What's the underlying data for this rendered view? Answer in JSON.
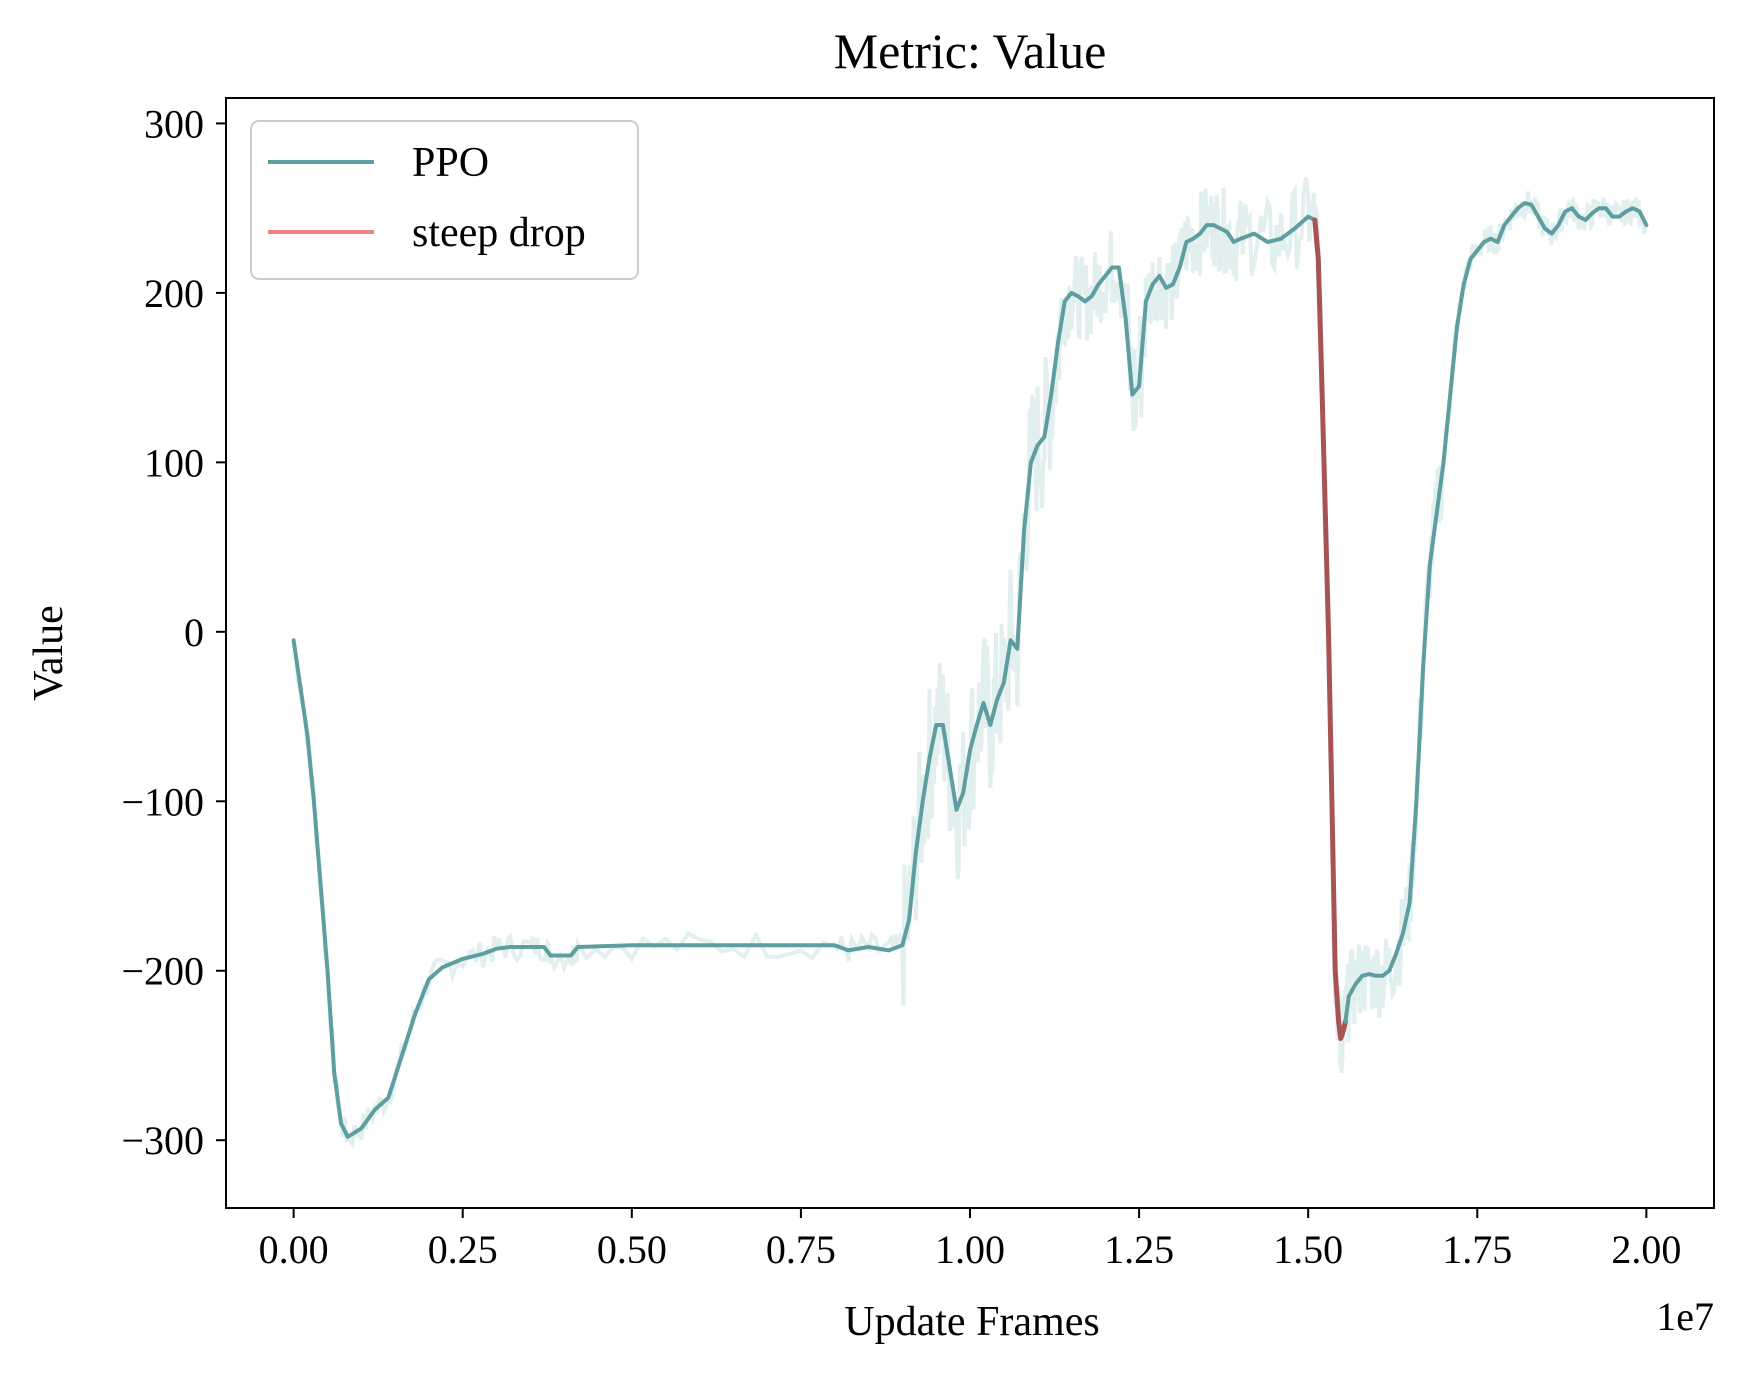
{
  "chart_data": {
    "type": "line",
    "title": "Metric: Value",
    "xlabel": "Update Frames",
    "ylabel": "Value",
    "x_offset_label": "1e7",
    "xlim": [
      -0.1,
      2.1
    ],
    "ylim": [
      -340,
      315
    ],
    "x_ticks": [
      0.0,
      0.25,
      0.5,
      0.75,
      1.0,
      1.25,
      1.5,
      1.75,
      2.0
    ],
    "x_tick_labels": [
      "0.00",
      "0.25",
      "0.50",
      "0.75",
      "1.00",
      "1.25",
      "1.50",
      "1.75",
      "2.00"
    ],
    "y_ticks": [
      -300,
      -200,
      -100,
      0,
      100,
      200,
      300
    ],
    "y_tick_labels": [
      "−300",
      "−200",
      "−100",
      "0",
      "100",
      "200",
      "300"
    ],
    "grid": false,
    "legend": {
      "placement": "upper-left",
      "entries": [
        {
          "label": "PPO",
          "color": "#5f9ea0"
        },
        {
          "label": "steep drop",
          "color": "#f08080"
        }
      ]
    },
    "colors": {
      "main": "#5f9ea0",
      "raw": "#e2efef",
      "drop": "#a85353",
      "drop_legend": "#f08080"
    },
    "series": [
      {
        "name": "PPO",
        "x": [
          0.0,
          0.02,
          0.03,
          0.05,
          0.06,
          0.07,
          0.08,
          0.1,
          0.12,
          0.14,
          0.16,
          0.18,
          0.2,
          0.22,
          0.25,
          0.28,
          0.3,
          0.32,
          0.35,
          0.37,
          0.38,
          0.41,
          0.42,
          0.5,
          0.6,
          0.7,
          0.8,
          0.82,
          0.85,
          0.88,
          0.9,
          0.91,
          0.92,
          0.93,
          0.94,
          0.95,
          0.96,
          0.97,
          0.98,
          0.99,
          1.0,
          1.01,
          1.02,
          1.03,
          1.04,
          1.05,
          1.06,
          1.07,
          1.08,
          1.09,
          1.1,
          1.11,
          1.12,
          1.13,
          1.14,
          1.15,
          1.16,
          1.17,
          1.18,
          1.19,
          1.2,
          1.21,
          1.22,
          1.23,
          1.24,
          1.25,
          1.26,
          1.27,
          1.28,
          1.29,
          1.3,
          1.31,
          1.32,
          1.33,
          1.34,
          1.35,
          1.36,
          1.37,
          1.38,
          1.39,
          1.4,
          1.42,
          1.44,
          1.46,
          1.48,
          1.5,
          1.51
        ],
        "y": [
          -5,
          -60,
          -100,
          -200,
          -260,
          -290,
          -298,
          -293,
          -282,
          -275,
          -250,
          -225,
          -205,
          -198,
          -193,
          -190,
          -187,
          -186,
          -186,
          -186,
          -191,
          -191,
          -186,
          -185,
          -185,
          -185,
          -185,
          -188,
          -186,
          -188,
          -185,
          -170,
          -130,
          -100,
          -75,
          -55,
          -55,
          -80,
          -105,
          -95,
          -70,
          -55,
          -42,
          -55,
          -40,
          -30,
          -5,
          -10,
          60,
          100,
          110,
          115,
          140,
          170,
          195,
          200,
          198,
          195,
          198,
          205,
          210,
          215,
          215,
          185,
          140,
          145,
          195,
          205,
          210,
          203,
          205,
          215,
          230,
          232,
          235,
          240,
          240,
          238,
          236,
          230,
          232,
          235,
          230,
          232,
          238,
          245,
          243
        ]
      },
      {
        "name": "steep drop",
        "x": [
          1.51,
          1.515,
          1.52,
          1.53,
          1.535,
          1.54,
          1.545,
          1.548,
          1.55,
          1.552,
          1.555
        ],
        "y": [
          243,
          220,
          150,
          0,
          -100,
          -200,
          -230,
          -240,
          -238,
          -235,
          -230
        ]
      },
      {
        "name": "PPO",
        "x": [
          1.555,
          1.56,
          1.57,
          1.58,
          1.59,
          1.6,
          1.61,
          1.62,
          1.63,
          1.64,
          1.65,
          1.66,
          1.67,
          1.68,
          1.69,
          1.7,
          1.71,
          1.72,
          1.73,
          1.74,
          1.75,
          1.76,
          1.77,
          1.78,
          1.79,
          1.8,
          1.81,
          1.82,
          1.83,
          1.84,
          1.85,
          1.86,
          1.87,
          1.88,
          1.89,
          1.9,
          1.91,
          1.92,
          1.93,
          1.94,
          1.95,
          1.96,
          1.97,
          1.98,
          1.99,
          2.0
        ],
        "y": [
          -230,
          -215,
          -208,
          -203,
          -202,
          -203,
          -203,
          -200,
          -190,
          -178,
          -160,
          -100,
          -20,
          40,
          70,
          100,
          140,
          180,
          205,
          220,
          225,
          230,
          232,
          230,
          240,
          245,
          250,
          253,
          252,
          245,
          238,
          235,
          240,
          248,
          250,
          245,
          243,
          247,
          250,
          250,
          245,
          245,
          248,
          250,
          248,
          240
        ]
      }
    ]
  }
}
